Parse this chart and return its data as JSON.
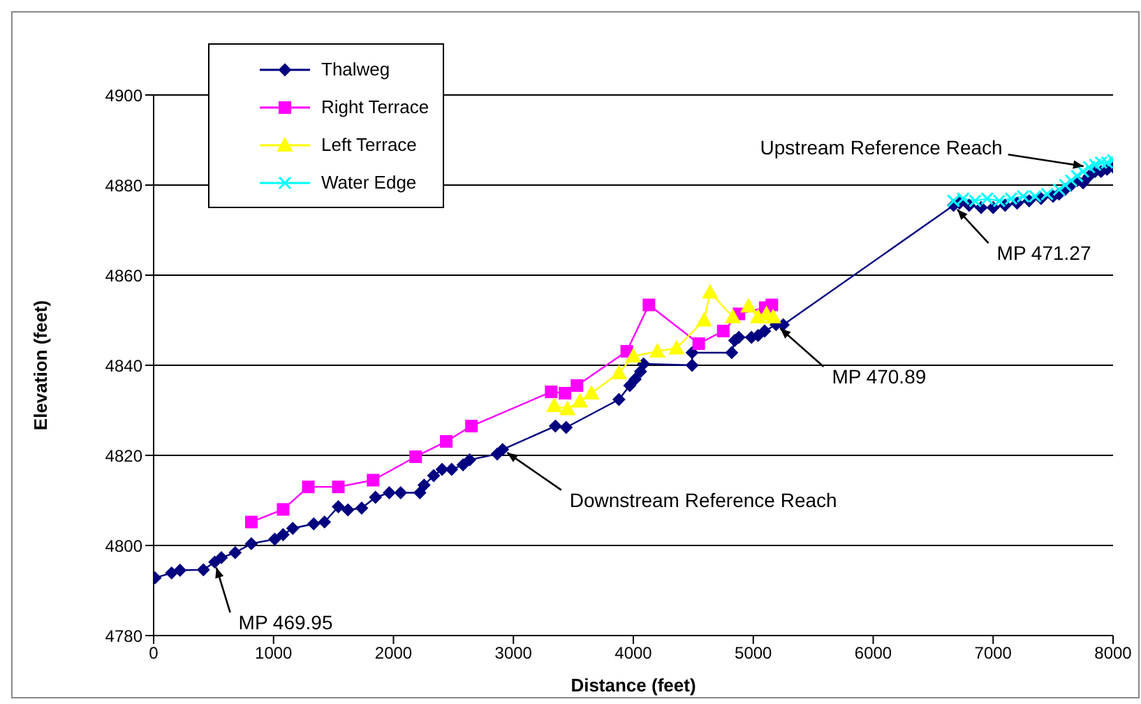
{
  "chart_data": {
    "type": "line",
    "xlabel": "Distance (feet)",
    "ylabel": "Elevation (feet)",
    "xlim": [
      0,
      8000
    ],
    "xticks": [
      0,
      1000,
      2000,
      3000,
      4000,
      5000,
      6000,
      7000,
      8000
    ],
    "ylim": [
      4780,
      4900
    ],
    "yticks": [
      4780,
      4800,
      4820,
      4840,
      4860,
      4880,
      4900
    ],
    "grid": "y",
    "legend": "top left",
    "series": [
      {
        "name": "Thalweg",
        "color": "#000080",
        "marker": "diamond",
        "x": [
          12,
          150,
          220,
          415,
          510,
          565,
          680,
          815,
          1010,
          1080,
          1160,
          1335,
          1425,
          1540,
          1620,
          1735,
          1850,
          1965,
          2060,
          2220,
          2255,
          2335,
          2405,
          2485,
          2580,
          2635,
          2865,
          2910,
          3350,
          3440,
          3880,
          3970,
          4015,
          4060,
          4085,
          4490,
          4490,
          4820,
          4845,
          4880,
          4985,
          5040,
          5095,
          5190,
          5250,
          6670,
          6720,
          6800,
          6900,
          7000,
          7100,
          7200,
          7300,
          7400,
          7500,
          7550,
          7600,
          7650,
          7700,
          7750,
          7800,
          7850,
          7900,
          7950,
          8000
        ],
        "values": [
          4792.8,
          4793.9,
          4794.5,
          4794.6,
          4796.3,
          4797.3,
          4798.4,
          4800.4,
          4801.4,
          4802.4,
          4803.8,
          4804.8,
          4805.2,
          4808.6,
          4807.9,
          4808.3,
          4810.7,
          4811.7,
          4811.7,
          4811.7,
          4813.4,
          4815.5,
          4816.9,
          4816.9,
          4817.9,
          4819,
          4820.3,
          4821.3,
          4826.5,
          4826.2,
          4832.4,
          4835.5,
          4836.9,
          4838.6,
          4840.3,
          4840,
          4842.8,
          4842.8,
          4845.5,
          4846.2,
          4846.2,
          4846.6,
          4847.6,
          4849,
          4849,
          4875.5,
          4876,
          4875.5,
          4875,
          4875,
          4875.5,
          4876,
          4876.5,
          4877,
          4877.5,
          4878,
          4879,
          4880,
          4881,
          4880.5,
          4882,
          4883,
          4883,
          4883.5,
          4884
        ]
      },
      {
        "name": "Right Terrace",
        "color": "#ff00ff",
        "marker": "square",
        "x": [
          815,
          1080,
          1290,
          1540,
          1830,
          2185,
          2440,
          2650,
          3315,
          3430,
          3530,
          3945,
          4130,
          4545,
          4750,
          4880,
          5100,
          5155
        ],
        "values": [
          4805.2,
          4808,
          4813,
          4813,
          4814.5,
          4819.7,
          4823.1,
          4826.5,
          4834.1,
          4833.8,
          4835.5,
          4843.1,
          4853.4,
          4844.8,
          4847.6,
          4851.4,
          4852.8,
          4853.4
        ]
      },
      {
        "name": "Left Terrace",
        "color": "#ffff00",
        "marker": "triangle",
        "x": [
          3340,
          3450,
          3555,
          3650,
          3880,
          4000,
          4200,
          4360,
          4590,
          4640,
          4830,
          4960,
          5040,
          5110,
          5165
        ],
        "values": [
          4831,
          4830.3,
          4832,
          4833.8,
          4838.3,
          4842,
          4843.1,
          4843.8,
          4850,
          4856.2,
          4850.7,
          4853.1,
          4850.7,
          4851.4,
          4850.7
        ]
      },
      {
        "name": "Water Edge",
        "color": "#00ffff",
        "marker": "cross",
        "x": [
          6670,
          6750,
          6850,
          6950,
          7050,
          7150,
          7250,
          7350,
          7450,
          7550,
          7600,
          7650,
          7700,
          7750,
          7800,
          7850,
          7900,
          7950,
          8000
        ],
        "values": [
          4876.5,
          4877,
          4876.5,
          4877,
          4876.5,
          4877,
          4877.5,
          4877.5,
          4878,
          4879,
          4880,
          4881,
          4882,
          4883,
          4884,
          4884.5,
          4885,
          4885,
          4885.5
        ]
      }
    ],
    "annotations": [
      {
        "text": "Upstream Reference Reach",
        "x": 7800,
        "y": 4884
      },
      {
        "text": "MP 471.27",
        "x": 6670,
        "y": 4875.5
      },
      {
        "text": "MP 470.89",
        "x": 5190,
        "y": 4849
      },
      {
        "text": "Downstream Reference Reach",
        "x": 2910,
        "y": 4821.3
      },
      {
        "text": "MP 469.95",
        "x": 510,
        "y": 4796.3
      }
    ]
  }
}
